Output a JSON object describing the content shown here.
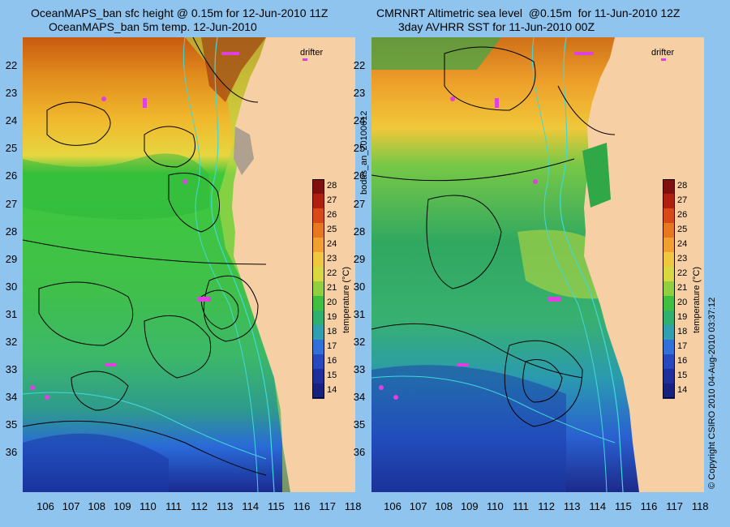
{
  "left_panel": {
    "title_line1": "OceanMAPS_ban sfc height @ 0.15m for 12-Jun-2010 11Z",
    "title_line2": "OceanMAPS_ban 5m temp. 12-Jun-2010",
    "drifter_label": "drifter"
  },
  "right_panel": {
    "title_line1": "CMRNRT Altimetric sea level  @0.15m  for 11-Jun-2010 12Z",
    "title_line2": "3day AVHRR SST for 11-Jun-2010 00Z",
    "drifter_label": "drifter"
  },
  "center_label": "bodas_an_20100612",
  "copyright": "© Copyright CSIRO 2010    04-Aug-2010 03:37:12",
  "colorbar": {
    "label": "temperature (°C)",
    "ticks": [
      "28",
      "27",
      "26",
      "25",
      "24",
      "23",
      "22",
      "21",
      "20",
      "19",
      "18",
      "17",
      "16",
      "15",
      "14"
    ]
  },
  "latitudes": [
    "22",
    "23",
    "24",
    "25",
    "26",
    "27",
    "28",
    "29",
    "30",
    "31",
    "32",
    "33",
    "34",
    "35",
    "36"
  ],
  "longitudes": [
    "106",
    "107",
    "108",
    "109",
    "110",
    "111",
    "112",
    "113",
    "114",
    "115",
    "116",
    "117",
    "118"
  ],
  "colors": {
    "background": "#8ec4ee",
    "land": "#f6cfa4",
    "drifter": "#e040e0",
    "contour": "#000000",
    "isobath": "#40d8d8"
  }
}
